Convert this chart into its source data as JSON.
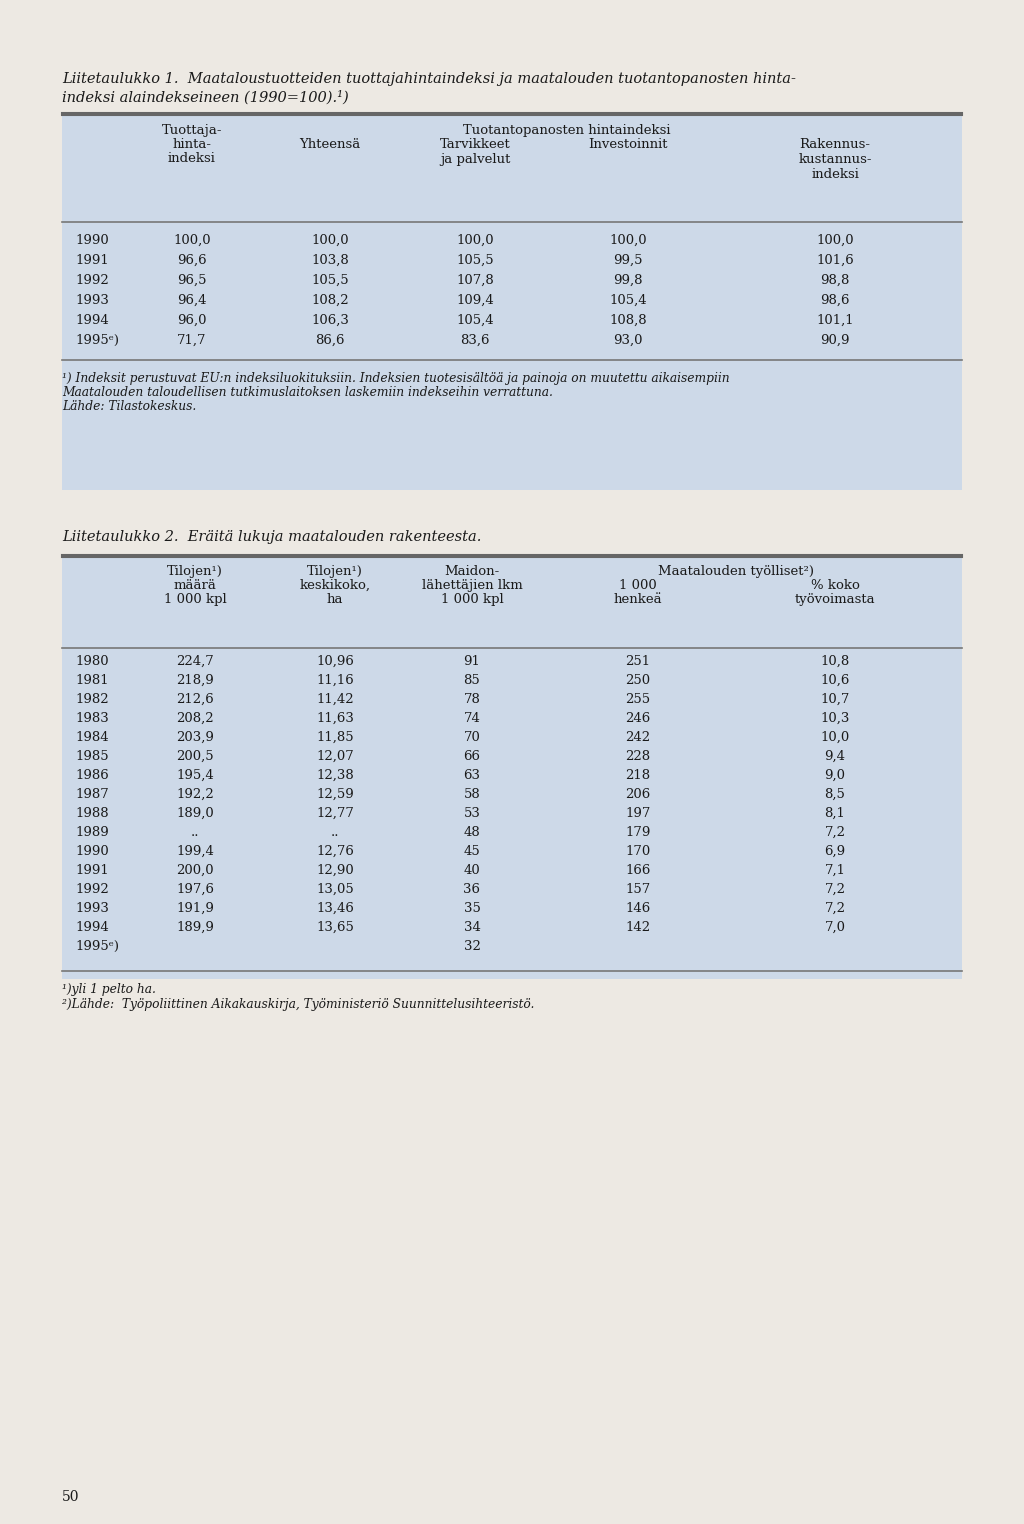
{
  "bg_color": "#cdd9e8",
  "page_bg": "#ede9e3",
  "title1_line1": "Liitetaulukko 1.  Maataloustuotteiden tuottajahintaindeksi ja maatalouden tuotantopanosten hinta-",
  "title1_line2": "indeksi alaindekseineen (1990=100).¹)",
  "t1_col1_header": [
    "Tuottaja-",
    "hinta-",
    "indeksi"
  ],
  "t1_span_header": "Tuotantopanosten hintaindeksi",
  "t1_subheaders": [
    "Yhteensä",
    "Tarvikkeet\nja palvelut",
    "Investoinnit",
    "Rakennus-\nkustannus-\nindeksi"
  ],
  "table1_data": [
    [
      "1990",
      "100,0",
      "100,0",
      "100,0",
      "100,0",
      "100,0"
    ],
    [
      "1991",
      "96,6",
      "103,8",
      "105,5",
      "99,5",
      "101,6"
    ],
    [
      "1992",
      "96,5",
      "105,5",
      "107,8",
      "99,8",
      "98,8"
    ],
    [
      "1993",
      "96,4",
      "108,2",
      "109,4",
      "105,4",
      "98,6"
    ],
    [
      "1994",
      "96,0",
      "106,3",
      "105,4",
      "108,8",
      "101,1"
    ],
    [
      "1995ᵉ)",
      "71,7",
      "86,6",
      "83,6",
      "93,0",
      "90,9"
    ]
  ],
  "t1_footnote1": "¹) Indeksit perustuvat EU:n indeksiluokituksiin. Indeksien tuotesisältöä ja painoja on muutettu aikaisempiin",
  "t1_footnote2": "Maatalouden taloudellisen tutkimuslaitoksen laskemiin indekseihin verrattuna.",
  "t1_footnote3": "Lähde: Tilastokeskus.",
  "title2": "Liitetaulukko 2.  Eräitä lukuja maatalouden rakenteesta.",
  "t2_h1": [
    "",
    "Tilojen¹)",
    "Tilojen¹)",
    "Maidon-",
    "Maatalouden työlliset²)",
    ""
  ],
  "t2_h2": [
    "",
    "määrä",
    "keskikoko,",
    "lähettäjien lkm",
    "1 000",
    "% koko"
  ],
  "t2_h3": [
    "",
    "1 000 kpl",
    "ha",
    "1 000 kpl",
    "henkeä",
    "työvoimasta"
  ],
  "table2_data": [
    [
      "1980",
      "224,7",
      "10,96",
      "91",
      "251",
      "10,8"
    ],
    [
      "1981",
      "218,9",
      "11,16",
      "85",
      "250",
      "10,6"
    ],
    [
      "1982",
      "212,6",
      "11,42",
      "78",
      "255",
      "10,7"
    ],
    [
      "1983",
      "208,2",
      "11,63",
      "74",
      "246",
      "10,3"
    ],
    [
      "1984",
      "203,9",
      "11,85",
      "70",
      "242",
      "10,0"
    ],
    [
      "1985",
      "200,5",
      "12,07",
      "66",
      "228",
      "9,4"
    ],
    [
      "1986",
      "195,4",
      "12,38",
      "63",
      "218",
      "9,0"
    ],
    [
      "1987",
      "192,2",
      "12,59",
      "58",
      "206",
      "8,5"
    ],
    [
      "1988",
      "189,0",
      "12,77",
      "53",
      "197",
      "8,1"
    ],
    [
      "1989",
      "..",
      "..",
      "48",
      "179",
      "7,2"
    ],
    [
      "1990",
      "199,4",
      "12,76",
      "45",
      "170",
      "6,9"
    ],
    [
      "1991",
      "200,0",
      "12,90",
      "40",
      "166",
      "7,1"
    ],
    [
      "1992",
      "197,6",
      "13,05",
      "36",
      "157",
      "7,2"
    ],
    [
      "1993",
      "191,9",
      "13,46",
      "35",
      "146",
      "7,2"
    ],
    [
      "1994",
      "189,9",
      "13,65",
      "34",
      "142",
      "7,0"
    ],
    [
      "1995ᵉ)",
      "",
      "",
      "32",
      "",
      ""
    ]
  ],
  "t2_footnote1": "¹)yli 1 pelto ha.",
  "t2_footnote2": "²)Lähde:  Työpoliittinen Aikakauskirja, Työministeriö Suunnittelusihteeristö.",
  "page_number": "50"
}
